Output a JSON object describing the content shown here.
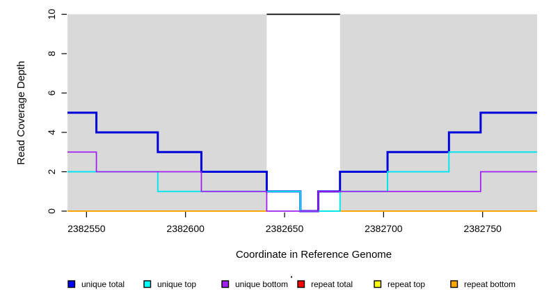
{
  "chart_data": {
    "type": "line",
    "subtype": "step-coverage-plot",
    "title": "",
    "xlabel": "Coordinate in Reference Genome",
    "ylabel": "Read Coverage Depth",
    "xlim": [
      2382540.4,
      2382777.5
    ],
    "ylim": [
      0,
      10
    ],
    "x_ticks": [
      2382550,
      2382600,
      2382650,
      2382700,
      2382750
    ],
    "y_ticks": [
      0,
      2,
      4,
      6,
      8,
      10
    ],
    "grid": false,
    "plot_bg_color": "#D9D9D9",
    "masked_region": {
      "x_start": 2382641,
      "x_end": 2382678,
      "fill": "#FFFFFF",
      "top_border_value": 10,
      "top_border_color": "#000000"
    },
    "series": [
      {
        "name": "repeat total",
        "color": "#FF0000",
        "width": 2,
        "over_mask": false,
        "steps": [
          [
            2382540.4,
            0
          ],
          [
            2382777.5,
            0
          ]
        ]
      },
      {
        "name": "repeat top",
        "color": "#FFFF00",
        "width": 2,
        "over_mask": false,
        "steps": [
          [
            2382540.4,
            0
          ],
          [
            2382777.5,
            0
          ]
        ]
      },
      {
        "name": "repeat bottom",
        "color": "#FFA500",
        "width": 2,
        "over_mask": false,
        "steps": [
          [
            2382540.4,
            0
          ],
          [
            2382777.5,
            0
          ]
        ]
      },
      {
        "name": "unique total",
        "color": "#0000DC",
        "width": 3,
        "over_mask": true,
        "steps": [
          [
            2382540.4,
            5
          ],
          [
            2382555,
            4
          ],
          [
            2382586,
            3
          ],
          [
            2382608,
            2
          ],
          [
            2382641,
            1
          ],
          [
            2382658,
            0
          ],
          [
            2382667,
            1
          ],
          [
            2382678,
            2
          ],
          [
            2382702,
            3
          ],
          [
            2382733,
            4
          ],
          [
            2382749,
            5
          ],
          [
            2382777.5,
            5
          ]
        ]
      },
      {
        "name": "unique top",
        "color": "#00E5EE",
        "width": 2,
        "over_mask": true,
        "steps": [
          [
            2382540.4,
            2
          ],
          [
            2382586,
            1
          ],
          [
            2382658,
            0
          ],
          [
            2382678,
            1
          ],
          [
            2382702,
            2
          ],
          [
            2382733,
            3
          ],
          [
            2382777.5,
            3
          ]
        ]
      },
      {
        "name": "unique bottom",
        "color": "#A020F0",
        "width": 1.8,
        "over_mask": true,
        "steps": [
          [
            2382540.4,
            3
          ],
          [
            2382555,
            2
          ],
          [
            2382608,
            1
          ],
          [
            2382641,
            0
          ],
          [
            2382667,
            1
          ],
          [
            2382749,
            2
          ],
          [
            2382777.5,
            2
          ]
        ]
      }
    ],
    "legend": {
      "position": "bottom",
      "items": [
        {
          "label": "unique total",
          "color": "#0000FF"
        },
        {
          "label": "unique top",
          "color": "#00FFFF"
        },
        {
          "label": "unique bottom",
          "color": "#A020F0"
        },
        {
          "label": "repeat total",
          "color": "#FF0000"
        },
        {
          "label": "repeat top",
          "color": "#FFFF00"
        },
        {
          "label": "repeat bottom",
          "color": "#FFA500"
        }
      ]
    }
  }
}
